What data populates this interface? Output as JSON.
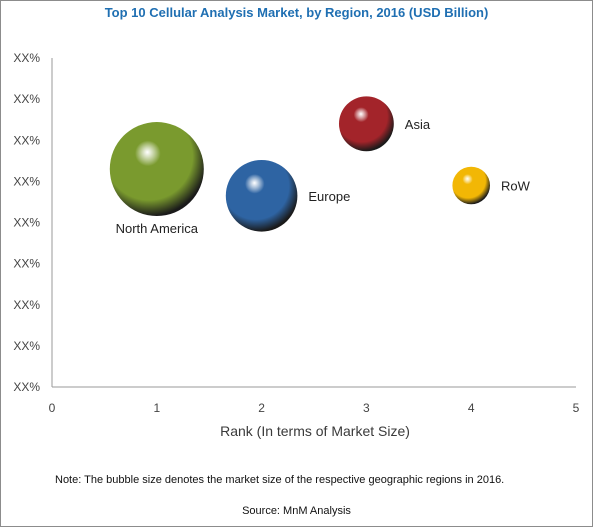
{
  "chart_data": {
    "type": "scatter",
    "title": "Top 10  Cellular Analysis Market, by Region, 2016 (USD Billion)",
    "xlabel": "Rank (In terms of Market Size)",
    "ylabel": "",
    "xlim": [
      0,
      5
    ],
    "x_ticks": [
      "0",
      "1",
      "2",
      "3",
      "4",
      "5"
    ],
    "y_tick_label": "XX%",
    "y_tick_count": 9,
    "grid": false,
    "series": [
      {
        "label": "North America",
        "x": 1,
        "y": 5.3,
        "size": 1.0,
        "color": "#7a9a2e",
        "label_position": "below"
      },
      {
        "label": "Europe",
        "x": 2,
        "y": 4.65,
        "size": 0.58,
        "color": "#2e64a3",
        "label_position": "right"
      },
      {
        "label": "Asia",
        "x": 3,
        "y": 6.4,
        "size": 0.34,
        "color": "#a3242a",
        "label_position": "right"
      },
      {
        "label": "RoW",
        "x": 4,
        "y": 4.9,
        "size": 0.16,
        "color": "#f2b705",
        "label_position": "right"
      }
    ]
  },
  "note": "Note: The bubble size denotes the market size of the respective geographic regions in 2016.",
  "source": "Source: MnM Analysis"
}
